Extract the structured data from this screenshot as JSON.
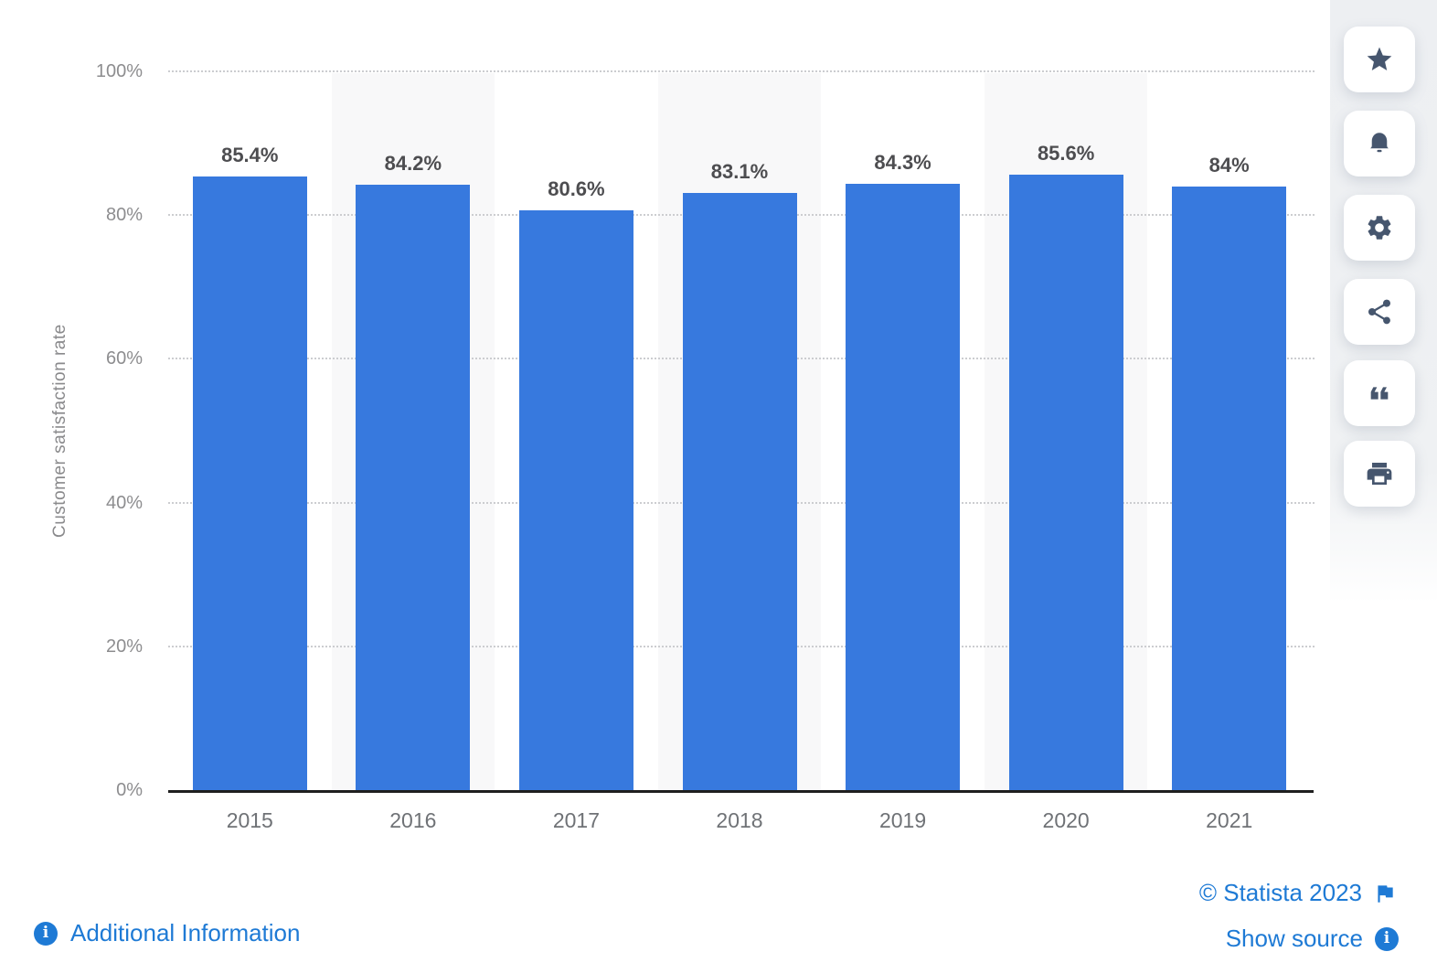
{
  "chart_data": {
    "type": "bar",
    "title": "",
    "categories": [
      "2015",
      "2016",
      "2017",
      "2018",
      "2019",
      "2020",
      "2021"
    ],
    "values": [
      85.4,
      84.2,
      80.6,
      83.1,
      84.3,
      85.6,
      84
    ],
    "value_labels": [
      "85.4%",
      "84.2%",
      "80.6%",
      "83.1%",
      "84.3%",
      "85.6%",
      "84%"
    ],
    "xlabel": "",
    "ylabel": "Customer satisfaction rate",
    "ylim": [
      0,
      100
    ],
    "yticks": [
      {
        "value": 0,
        "label": "0%"
      },
      {
        "value": 20,
        "label": "20%"
      },
      {
        "value": 40,
        "label": "40%"
      },
      {
        "value": 60,
        "label": "60%"
      },
      {
        "value": 80,
        "label": "80%"
      },
      {
        "value": 100,
        "label": "100%"
      }
    ],
    "grid": "horizontal-dotted",
    "legend": "none",
    "bar_color": "#3779DE",
    "striped_column_indexes": [
      1,
      3,
      5
    ],
    "stripe_color": "#F8F8F9"
  },
  "toolbar": {
    "buttons": [
      {
        "name": "favorite",
        "icon": "star-icon"
      },
      {
        "name": "alert",
        "icon": "bell-icon"
      },
      {
        "name": "settings",
        "icon": "gear-icon"
      },
      {
        "name": "share",
        "icon": "share-icon"
      },
      {
        "name": "cite",
        "icon": "quote-icon"
      },
      {
        "name": "print",
        "icon": "print-icon"
      }
    ]
  },
  "footer": {
    "additional_information_label": "Additional Information",
    "copyright_label": "© Statista 2023",
    "show_source_label": "Show source",
    "link_color": "#1E7AD5"
  }
}
